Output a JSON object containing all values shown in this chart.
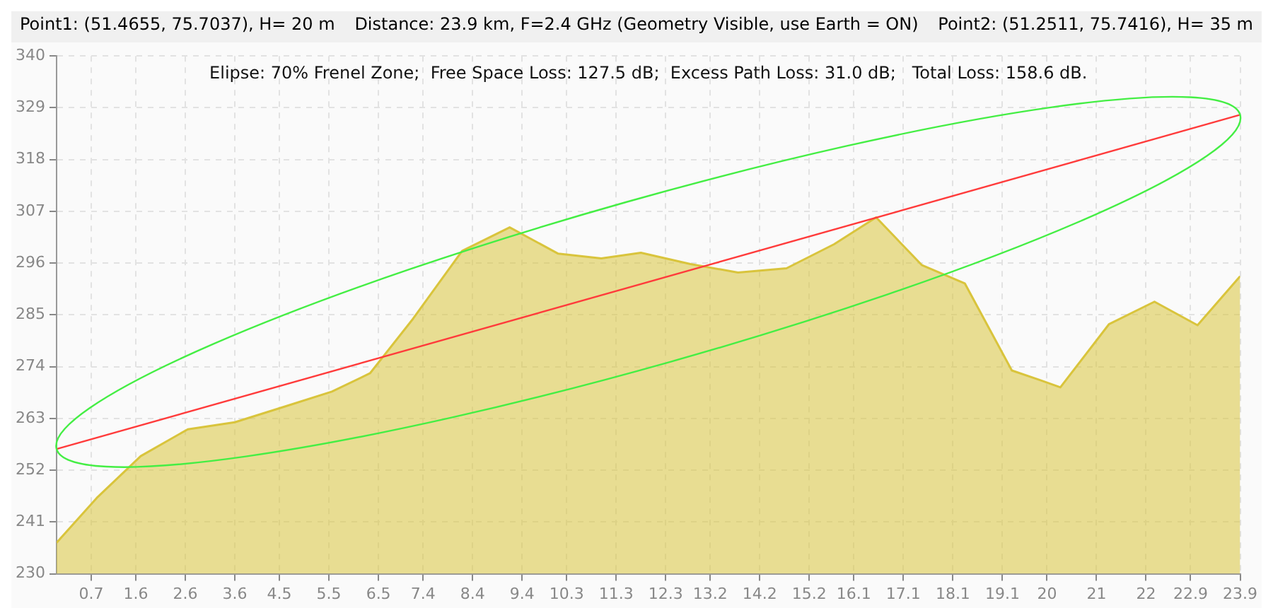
{
  "chart_data": {
    "type": "area",
    "title": "Distance: 23.9 km, F=2.4 GHz (Geometry Visible, use Earth = ON)",
    "annotations": [
      "Point1: (51.4655, 75.7037), H= 20 m",
      "Point2: (51.2511, 75.7416), H= 35 m",
      "Elipse: 70% Frenel Zone;  Free Space Loss: 127.5 dB;  Excess Path Loss: 31.0 dB;   Total Loss: 158.6 dB."
    ],
    "series": [
      {
        "color": "#d9c43c",
        "x": [
          0,
          0.81,
          1.7,
          2.65,
          3.6,
          4.6,
          5.56,
          6.33,
          7.2,
          8.19,
          9.15,
          10.13,
          11.0,
          11.8,
          12.8,
          13.76,
          14.74,
          15.7,
          16.55,
          17.47,
          18.34,
          19.29,
          19.87,
          20.27,
          21.25,
          22.17,
          23.04,
          23.9
        ],
        "values": [
          236.6,
          246.1,
          255.0,
          260.7,
          262.2,
          265.5,
          268.7,
          272.6,
          284.2,
          298.6,
          303.6,
          298,
          297,
          298.2,
          295.8,
          294,
          294.9,
          300,
          305.7,
          295.6,
          291.7,
          273.2,
          271.1,
          269.6,
          283,
          287.8,
          282.8,
          293.2
        ]
      },
      {
        "type": "line",
        "color": "#ff3b3b",
        "x": [
          0,
          23.9
        ],
        "values": [
          256.5,
          327.5
        ]
      }
    ],
    "xlim": [
      0,
      23.9
    ],
    "xticks": [
      0.7,
      1.6,
      2.6,
      3.6,
      4.5,
      5.5,
      6.5,
      7.4,
      8.4,
      9.4,
      10.3,
      11.3,
      12.3,
      13.2,
      14.2,
      15.2,
      16.1,
      17.1,
      18.1,
      19.1,
      20,
      21,
      22,
      22.9,
      23.9
    ],
    "ylim": [
      230,
      340
    ],
    "yticks": [
      230,
      241,
      252,
      263,
      274,
      285,
      296,
      307,
      318,
      329,
      340
    ],
    "grid": true,
    "marker": "none",
    "line_style": "solid"
  }
}
